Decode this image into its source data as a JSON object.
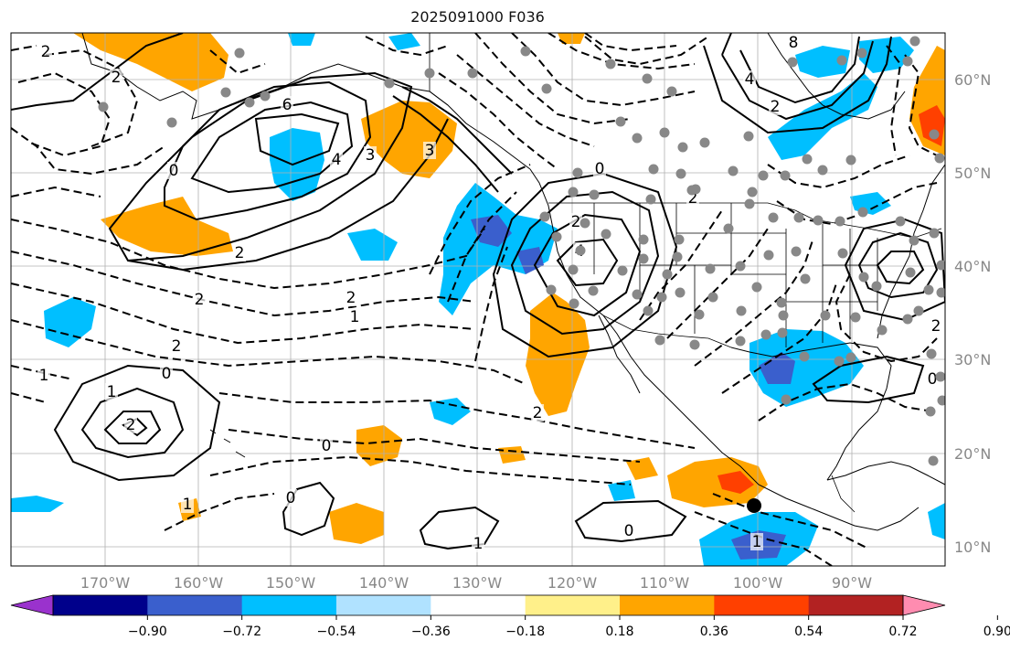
{
  "title": "2025091000 F036",
  "lon_labels": [
    "170°W",
    "160°W",
    "150°W",
    "140°W",
    "130°W",
    "120°W",
    "110°W",
    "100°W",
    "90°W"
  ],
  "lat_labels": [
    "60°N",
    "50°N",
    "40°N",
    "30°N",
    "20°N",
    "10°N"
  ],
  "colorbar": {
    "tick_labels": [
      "−0.90",
      "−0.72",
      "−0.54",
      "−0.36",
      "−0.18",
      "0.18",
      "0.36",
      "0.54",
      "0.72",
      "0.90"
    ],
    "colors": [
      "#9a32cd",
      "#00008b",
      "#3a5fcd",
      "#00bfff",
      "#b0e2ff",
      "#ffffff",
      "#fff08a",
      "#ffa500",
      "#ff4000",
      "#b22222",
      "#ff8cb0"
    ]
  },
  "contour_labels": [
    "2",
    "2",
    "6",
    "4",
    "3",
    "2",
    "0",
    "2",
    "2",
    "1",
    "2",
    "1",
    "0",
    "1",
    "2",
    "2",
    "0",
    "1",
    "0",
    "1",
    "0",
    "2",
    "0",
    "1",
    "2",
    "4",
    "3",
    "0",
    "2",
    "1",
    "8",
    "4",
    "2"
  ],
  "map_features": [
    "coastlines",
    "country-borders",
    "us-state-borders",
    "lat-lon-grid"
  ],
  "station_marker_color": "#888888",
  "highlight_marker_color": "#000000"
}
